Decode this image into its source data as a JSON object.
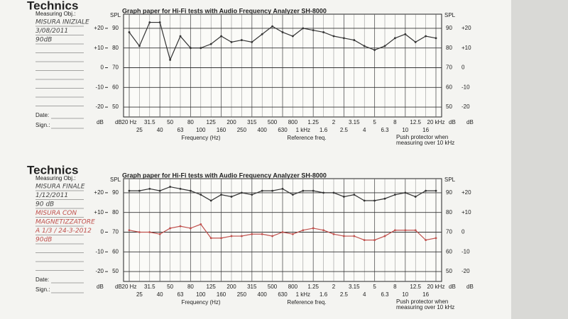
{
  "chart_data": [
    {
      "type": "line",
      "brand": "Technics",
      "title": "Graph paper for Hi-Fi tests with Audio Frequency Analyzer SH-8000",
      "measuring_label": "Measuring Obj.:",
      "annotations": [
        {
          "text": "MISURA INIZIALE",
          "color": "#444"
        },
        {
          "text": "3/08/2011",
          "color": "#444"
        },
        {
          "text": "90dB",
          "color": "#444"
        }
      ],
      "date_label": "Date:",
      "sign_label": "Sign.:",
      "spl_label": "SPL",
      "db_label": "dB",
      "x_label": "Frequency (Hz)",
      "reference_label": "Reference freq.",
      "protector_note": [
        "Push protector when",
        "measuring over 10 kHz"
      ],
      "categories": [
        "20 Hz",
        "25",
        "31.5",
        "40",
        "50",
        "63",
        "80",
        "100",
        "125",
        "160",
        "200",
        "250",
        "315",
        "400",
        "500",
        "630",
        "800",
        "1 kHz",
        "1.25",
        "1.6",
        "2",
        "2.5",
        "3.15",
        "4",
        "5",
        "6.3",
        "8",
        "10",
        "12.5",
        "16",
        "20 kHz"
      ],
      "series": [
        {
          "color": "#333333",
          "values": [
            88,
            81,
            93,
            93,
            74,
            86,
            80,
            80,
            82,
            86,
            83,
            84,
            83,
            87,
            91,
            88,
            86,
            90,
            89,
            88,
            86,
            85,
            84,
            81,
            79,
            81,
            85,
            87,
            83,
            86,
            85
          ]
        }
      ],
      "ylim": [
        45,
        95
      ],
      "yticks": [
        50,
        60,
        70,
        80,
        90
      ],
      "y2lim": [
        -25,
        25
      ],
      "y2ticks": [
        {
          "value": -20,
          "label": "-20"
        },
        {
          "value": -10,
          "label": "-10"
        },
        0,
        {
          "value": 10,
          "label": "+10"
        },
        {
          "value": 20,
          "label": "+20"
        }
      ],
      "grid": true
    },
    {
      "type": "line",
      "brand": "Technics",
      "title": "Graph paper for Hi-Fi tests with Audio Frequency Analyzer SH-8000",
      "measuring_label": "Measuring Obj.:",
      "annotations": [
        {
          "text": "MISURA FINALE",
          "color": "#444"
        },
        {
          "text": "1/12/2011",
          "color": "#444"
        },
        {
          "text": "90 dB",
          "color": "#444"
        },
        {
          "text": "MISURA CON",
          "color": "#c0504d"
        },
        {
          "text": "MAGNETIZZATORE",
          "color": "#c0504d"
        },
        {
          "text": "A 1/3 / 24-3-2012",
          "color": "#c0504d"
        },
        {
          "text": "90dB",
          "color": "#c0504d"
        }
      ],
      "date_label": "Date:",
      "sign_label": "Sign.:",
      "spl_label": "SPL",
      "db_label": "dB",
      "x_label": "Frequency (Hz)",
      "reference_label": "Reference freq.",
      "protector_note": [
        "Push protector when",
        "measuring over 10 kHz"
      ],
      "categories": [
        "20 Hz",
        "25",
        "31.5",
        "40",
        "50",
        "63",
        "80",
        "100",
        "125",
        "160",
        "200",
        "250",
        "315",
        "400",
        "500",
        "630",
        "800",
        "1 kHz",
        "1.25",
        "1.6",
        "2",
        "2.5",
        "3.15",
        "4",
        "5",
        "6.3",
        "8",
        "10",
        "12.5",
        "16",
        "20 kHz"
      ],
      "series": [
        {
          "color": "#333333",
          "values": [
            91,
            91,
            92,
            91,
            93,
            92,
            91,
            89,
            86,
            89,
            88,
            90,
            89,
            91,
            91,
            92,
            89,
            91,
            91,
            90,
            90,
            88,
            89,
            86,
            86,
            87,
            89,
            90,
            88,
            91,
            91
          ]
        },
        {
          "color": "#c0504d",
          "values": [
            71,
            70,
            70,
            69,
            72,
            73,
            72,
            74,
            67,
            67,
            68,
            68,
            69,
            69,
            68,
            70,
            69,
            71,
            72,
            71,
            69,
            68,
            68,
            66,
            66,
            68,
            71,
            71,
            71,
            66,
            67
          ]
        }
      ],
      "ylim": [
        45,
        95
      ],
      "yticks": [
        50,
        60,
        70,
        80,
        90
      ],
      "y2lim": [
        -25,
        25
      ],
      "y2ticks": [
        {
          "value": -20,
          "label": "-20"
        },
        {
          "value": -10,
          "label": "-10"
        },
        0,
        {
          "value": 10,
          "label": "+10"
        },
        {
          "value": 20,
          "label": "+20"
        }
      ],
      "grid": true
    }
  ]
}
